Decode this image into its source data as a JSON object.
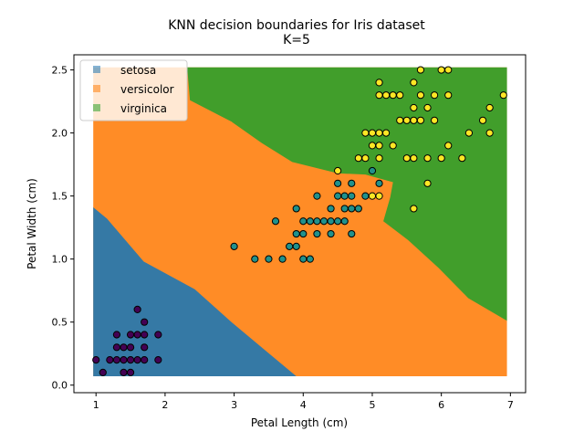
{
  "chart_data": {
    "type": "scatter",
    "title": "KNN decision boundaries for Iris dataset",
    "subtitle": "K=5",
    "xlabel": "Petal Length (cm)",
    "ylabel": "Petal Width (cm)",
    "xlim": [
      0.68,
      7.22
    ],
    "ylim": [
      -0.06,
      2.62
    ],
    "xticks": [
      "1",
      "2",
      "3",
      "4",
      "5",
      "6",
      "7"
    ],
    "yticks": [
      "0.0",
      "0.5",
      "1.0",
      "1.5",
      "2.0",
      "2.5"
    ],
    "grid": false,
    "legend": {
      "placement": "top-left",
      "entries": [
        {
          "label": "setosa",
          "color": "#1f77b4"
        },
        {
          "label": "versicolor",
          "color": "#ff7f0e"
        },
        {
          "label": "virginica",
          "color": "#2ca02c"
        }
      ]
    },
    "regions": {
      "versicolor": {
        "color": "#ff7f0e",
        "polygon": [
          [
            0.96,
            0.07
          ],
          [
            6.95,
            0.07
          ],
          [
            6.95,
            2.52
          ],
          [
            0.96,
            2.52
          ]
        ]
      },
      "setosa": {
        "color": "#1f77b4",
        "polygon": [
          [
            0.96,
            1.41
          ],
          [
            1.16,
            1.32
          ],
          [
            1.69,
            0.98
          ],
          [
            2.43,
            0.76
          ],
          [
            2.96,
            0.5
          ],
          [
            3.9,
            0.07
          ],
          [
            0.96,
            0.07
          ]
        ]
      },
      "virginica": {
        "color": "#2ca02c",
        "polygon": [
          [
            2.32,
            2.52
          ],
          [
            2.36,
            2.26
          ],
          [
            2.96,
            2.09
          ],
          [
            3.4,
            1.92
          ],
          [
            3.84,
            1.77
          ],
          [
            4.5,
            1.68
          ],
          [
            4.9,
            1.67
          ],
          [
            5.3,
            1.61
          ],
          [
            5.26,
            1.49
          ],
          [
            5.16,
            1.3
          ],
          [
            5.52,
            1.15
          ],
          [
            5.96,
            0.93
          ],
          [
            6.39,
            0.69
          ],
          [
            6.95,
            0.51
          ],
          [
            6.95,
            2.52
          ]
        ]
      }
    },
    "series": [
      {
        "class": "setosa",
        "color": "#440154",
        "points": [
          [
            1.6,
            0.6
          ],
          [
            1.7,
            0.5
          ],
          [
            1.3,
            0.4
          ],
          [
            1.5,
            0.4
          ],
          [
            1.6,
            0.4
          ],
          [
            1.7,
            0.4
          ],
          [
            1.9,
            0.4
          ],
          [
            1.3,
            0.3
          ],
          [
            1.4,
            0.3
          ],
          [
            1.5,
            0.3
          ],
          [
            1.7,
            0.3
          ],
          [
            1.0,
            0.2
          ],
          [
            1.2,
            0.2
          ],
          [
            1.3,
            0.2
          ],
          [
            1.4,
            0.2
          ],
          [
            1.5,
            0.2
          ],
          [
            1.6,
            0.2
          ],
          [
            1.7,
            0.2
          ],
          [
            1.9,
            0.2
          ],
          [
            1.1,
            0.1
          ],
          [
            1.4,
            0.1
          ],
          [
            1.5,
            0.1
          ]
        ]
      },
      {
        "class": "versicolor",
        "color": "#21918c",
        "points": [
          [
            3.3,
            1.0
          ],
          [
            3.5,
            1.0
          ],
          [
            3.7,
            1.0
          ],
          [
            4.0,
            1.0
          ],
          [
            4.1,
            1.0
          ],
          [
            3.0,
            1.1
          ],
          [
            3.8,
            1.1
          ],
          [
            3.9,
            1.1
          ],
          [
            3.9,
            1.2
          ],
          [
            4.0,
            1.2
          ],
          [
            4.2,
            1.2
          ],
          [
            4.4,
            1.2
          ],
          [
            4.7,
            1.2
          ],
          [
            3.6,
            1.3
          ],
          [
            4.0,
            1.3
          ],
          [
            4.1,
            1.3
          ],
          [
            4.2,
            1.3
          ],
          [
            4.3,
            1.3
          ],
          [
            4.4,
            1.3
          ],
          [
            4.5,
            1.3
          ],
          [
            4.6,
            1.3
          ],
          [
            3.9,
            1.4
          ],
          [
            4.4,
            1.4
          ],
          [
            4.6,
            1.4
          ],
          [
            4.7,
            1.4
          ],
          [
            4.8,
            1.4
          ],
          [
            4.2,
            1.5
          ],
          [
            4.5,
            1.5
          ],
          [
            4.6,
            1.5
          ],
          [
            4.7,
            1.5
          ],
          [
            4.9,
            1.5
          ],
          [
            4.5,
            1.6
          ],
          [
            4.7,
            1.6
          ],
          [
            5.1,
            1.6
          ],
          [
            5.0,
            1.7
          ]
        ]
      },
      {
        "class": "virginica",
        "color": "#fde725",
        "points": [
          [
            5.6,
            1.4
          ],
          [
            5.0,
            1.5
          ],
          [
            5.1,
            1.5
          ],
          [
            5.8,
            1.6
          ],
          [
            4.5,
            1.7
          ],
          [
            4.8,
            1.8
          ],
          [
            4.9,
            1.8
          ],
          [
            5.1,
            1.8
          ],
          [
            5.5,
            1.8
          ],
          [
            5.6,
            1.8
          ],
          [
            5.8,
            1.8
          ],
          [
            6.0,
            1.8
          ],
          [
            6.3,
            1.8
          ],
          [
            5.0,
            1.9
          ],
          [
            5.1,
            1.9
          ],
          [
            5.3,
            1.9
          ],
          [
            6.1,
            1.9
          ],
          [
            4.9,
            2.0
          ],
          [
            5.0,
            2.0
          ],
          [
            5.1,
            2.0
          ],
          [
            5.2,
            2.0
          ],
          [
            6.4,
            2.0
          ],
          [
            6.7,
            2.0
          ],
          [
            5.4,
            2.1
          ],
          [
            5.5,
            2.1
          ],
          [
            5.6,
            2.1
          ],
          [
            5.7,
            2.1
          ],
          [
            5.9,
            2.1
          ],
          [
            6.6,
            2.1
          ],
          [
            5.6,
            2.2
          ],
          [
            5.8,
            2.2
          ],
          [
            6.7,
            2.2
          ],
          [
            5.1,
            2.3
          ],
          [
            5.2,
            2.3
          ],
          [
            5.3,
            2.3
          ],
          [
            5.4,
            2.3
          ],
          [
            5.7,
            2.3
          ],
          [
            5.9,
            2.3
          ],
          [
            6.1,
            2.3
          ],
          [
            6.9,
            2.3
          ],
          [
            5.1,
            2.4
          ],
          [
            5.6,
            2.4
          ],
          [
            5.7,
            2.5
          ],
          [
            6.0,
            2.5
          ],
          [
            6.1,
            2.5
          ]
        ]
      }
    ]
  }
}
